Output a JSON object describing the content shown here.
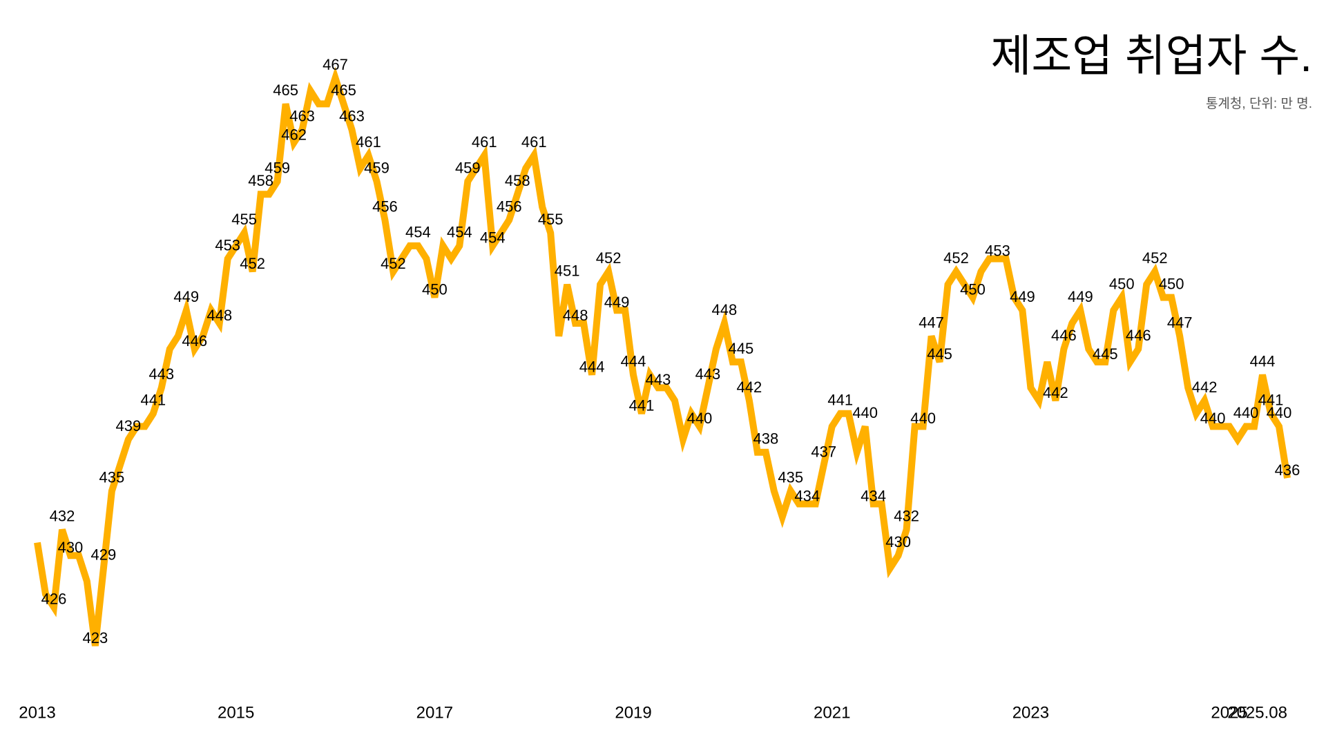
{
  "chart_data": {
    "type": "line",
    "title": "제조업 취업자 수.",
    "subtitle": "통계청, 단위: 만 명.",
    "x": [
      "2013.01",
      "2013.02",
      "2013.03",
      "2013.04",
      "2013.05",
      "2013.06",
      "2013.07",
      "2013.08",
      "2013.09",
      "2013.10",
      "2013.11",
      "2013.12",
      "2014.01",
      "2014.02",
      "2014.03",
      "2014.04",
      "2014.05",
      "2014.06",
      "2014.07",
      "2014.08",
      "2014.09",
      "2014.10",
      "2014.11",
      "2014.12",
      "2015.01",
      "2015.02",
      "2015.03",
      "2015.04",
      "2015.05",
      "2015.06",
      "2015.07",
      "2015.08",
      "2015.09",
      "2015.10",
      "2015.11",
      "2015.12",
      "2016.01",
      "2016.02",
      "2016.03",
      "2016.04",
      "2016.05",
      "2016.06",
      "2016.07",
      "2016.08",
      "2016.09",
      "2016.10",
      "2016.11",
      "2016.12",
      "2017.01",
      "2017.02",
      "2017.03",
      "2017.04",
      "2017.05",
      "2017.06",
      "2017.07",
      "2017.08",
      "2017.09",
      "2017.10",
      "2017.11",
      "2017.12",
      "2018.01",
      "2018.02",
      "2018.03",
      "2018.04",
      "2018.05",
      "2018.06",
      "2018.07",
      "2018.08",
      "2018.09",
      "2018.10",
      "2018.11",
      "2018.12",
      "2019.01",
      "2019.02",
      "2019.03",
      "2019.04",
      "2019.05",
      "2019.06",
      "2019.07",
      "2019.08",
      "2019.09",
      "2019.10",
      "2019.11",
      "2019.12",
      "2020.01",
      "2020.02",
      "2020.03",
      "2020.04",
      "2020.05",
      "2020.06",
      "2020.07",
      "2020.08",
      "2020.09",
      "2020.10",
      "2020.11",
      "2020.12",
      "2021.01",
      "2021.02",
      "2021.03",
      "2021.04",
      "2021.05",
      "2021.06",
      "2021.07",
      "2021.08",
      "2021.09",
      "2021.10",
      "2021.11",
      "2021.12",
      "2022.01",
      "2022.02",
      "2022.03",
      "2022.04",
      "2022.05",
      "2022.06",
      "2022.07",
      "2022.08",
      "2022.09",
      "2022.10",
      "2022.11",
      "2022.12",
      "2023.01",
      "2023.02",
      "2023.03",
      "2023.04",
      "2023.05",
      "2023.06",
      "2023.07",
      "2023.08",
      "2023.09",
      "2023.10",
      "2023.11",
      "2023.12",
      "2024.01",
      "2024.02",
      "2024.03",
      "2024.04",
      "2024.05",
      "2024.06",
      "2024.07",
      "2024.08",
      "2024.09",
      "2024.10",
      "2024.11",
      "2024.12",
      "2025.01",
      "2025.02",
      "2025.03",
      "2025.04",
      "2025.05",
      "2025.06",
      "2025.07",
      "2025.08"
    ],
    "values": [
      431,
      427,
      426,
      432,
      430,
      430,
      428,
      423,
      429,
      435,
      437,
      439,
      440,
      440,
      441,
      443,
      446,
      447,
      449,
      446,
      447,
      449,
      448,
      453,
      454,
      455,
      452,
      458,
      458,
      459,
      465,
      462,
      463,
      466,
      465,
      465,
      467,
      465,
      463,
      460,
      461,
      459,
      456,
      452,
      453,
      454,
      454,
      453,
      450,
      454,
      453,
      454,
      459,
      460,
      461,
      454,
      455,
      456,
      458,
      460,
      461,
      457,
      455,
      447,
      451,
      448,
      448,
      444,
      451,
      452,
      449,
      449,
      444,
      441,
      444,
      443,
      443,
      442,
      439,
      441,
      440,
      443,
      446,
      448,
      445,
      445,
      442,
      438,
      438,
      435,
      433,
      435,
      434,
      434,
      434,
      437,
      440,
      441,
      441,
      438,
      440,
      434,
      434,
      429,
      430,
      432,
      440,
      440,
      447,
      445,
      451,
      452,
      451,
      450,
      452,
      453,
      453,
      453,
      450,
      449,
      443,
      442,
      445,
      442,
      446,
      448,
      449,
      446,
      445,
      445,
      449,
      450,
      445,
      446,
      451,
      452,
      450,
      450,
      447,
      443,
      441,
      442,
      440,
      440,
      440,
      439,
      440,
      440,
      444,
      441,
      440,
      436
    ],
    "value_labels": [
      null,
      null,
      "426",
      "432",
      "430",
      null,
      null,
      "423",
      "429",
      "435",
      null,
      "439",
      null,
      null,
      "441",
      "443",
      null,
      null,
      "449",
      "446",
      null,
      null,
      "448",
      "453",
      null,
      "455",
      "452",
      "458",
      null,
      "459",
      "465",
      "462",
      "463",
      null,
      null,
      null,
      "467",
      "465",
      "463",
      null,
      "461",
      "459",
      "456",
      "452",
      null,
      null,
      "454",
      null,
      "450",
      null,
      null,
      "454",
      "459",
      null,
      "461",
      "454",
      null,
      "456",
      "458",
      null,
      "461",
      null,
      "455",
      null,
      "451",
      "448",
      null,
      "444",
      null,
      "452",
      "449",
      null,
      "444",
      "441",
      null,
      "443",
      null,
      null,
      null,
      null,
      "440",
      "443",
      null,
      "448",
      null,
      "445",
      "442",
      null,
      "438",
      null,
      null,
      "435",
      null,
      "434",
      null,
      "437",
      null,
      "441",
      null,
      null,
      "440",
      "434",
      null,
      null,
      "430",
      "432",
      null,
      "440",
      "447",
      "445",
      null,
      "452",
      null,
      "450",
      null,
      null,
      "453",
      null,
      null,
      "449",
      null,
      null,
      null,
      "442",
      "446",
      null,
      "449",
      null,
      null,
      "445",
      null,
      "450",
      null,
      "446",
      null,
      "452",
      null,
      "450",
      "447",
      null,
      null,
      "442",
      "440",
      null,
      null,
      null,
      "440",
      null,
      "444",
      "441",
      "440",
      "436"
    ],
    "color": "#ffb000",
    "xlim": [
      "2013.01",
      "2025.08"
    ],
    "xticks": [
      {
        "value": "2013.01",
        "label": "2013"
      },
      {
        "value": "2015.01",
        "label": "2015"
      },
      {
        "value": "2017.01",
        "label": "2017"
      },
      {
        "value": "2019.01",
        "label": "2019"
      },
      {
        "value": "2021.01",
        "label": "2021"
      },
      {
        "value": "2023.01",
        "label": "2023"
      },
      {
        "value": "2025.01",
        "label": "2025"
      },
      "2025.08"
    ],
    "ylim": [
      420,
      470
    ]
  }
}
